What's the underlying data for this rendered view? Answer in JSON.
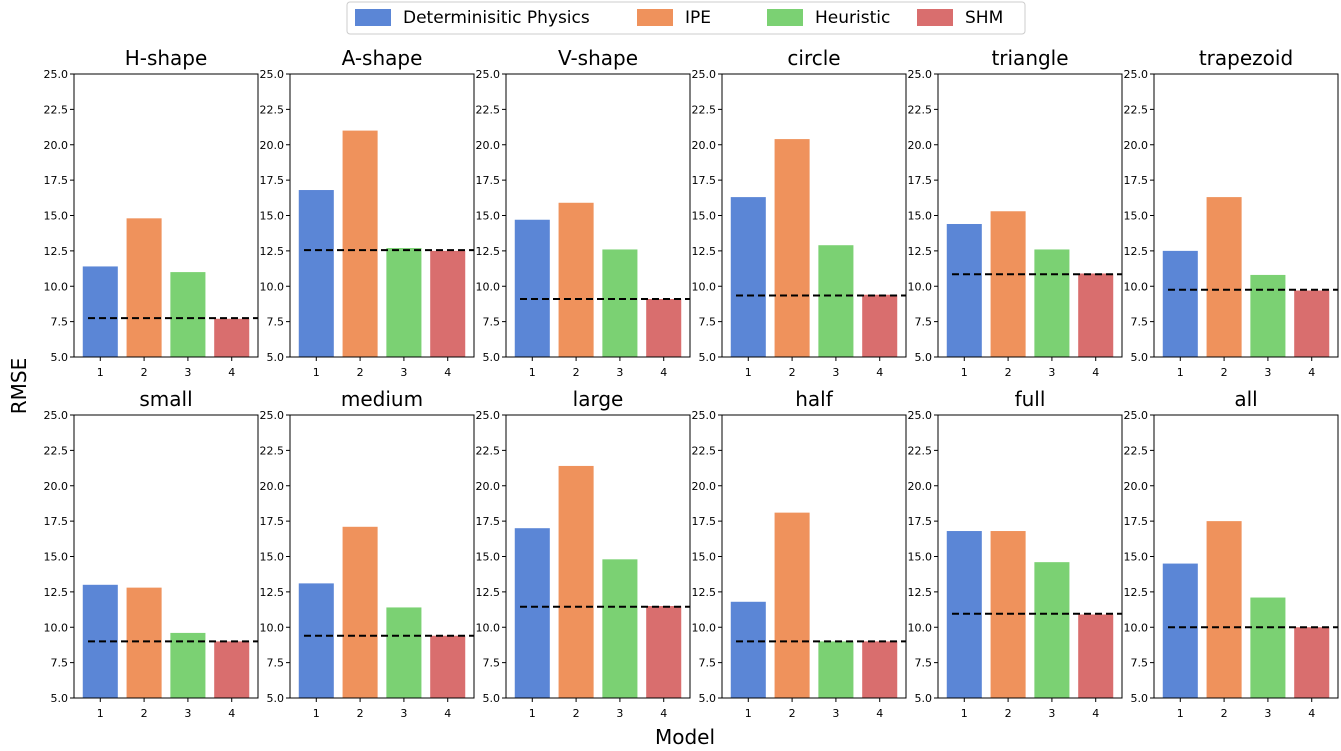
{
  "figure": {
    "xlabel": "Model",
    "ylabel": "RMSE"
  },
  "legend": {
    "entries": [
      {
        "name": "Determinisitic Physics",
        "color": "#5b86d6"
      },
      {
        "name": "IPE",
        "color": "#ef925c"
      },
      {
        "name": "Heuristic",
        "color": "#7bd173"
      },
      {
        "name": "SHM",
        "color": "#d96e6e"
      }
    ]
  },
  "chart_data": [
    {
      "type": "bar",
      "title": "H-shape",
      "categories": [
        "1",
        "2",
        "3",
        "4"
      ],
      "values": [
        11.4,
        14.8,
        11.0,
        7.7
      ],
      "reference_line": 7.75,
      "ylim": [
        5,
        25
      ],
      "yticks": [
        "5.0",
        "7.5",
        "10.0",
        "12.5",
        "15.0",
        "17.5",
        "20.0",
        "22.5",
        "25.0"
      ]
    },
    {
      "type": "bar",
      "title": "A-shape",
      "categories": [
        "1",
        "2",
        "3",
        "4"
      ],
      "values": [
        16.8,
        21.0,
        12.7,
        12.5
      ],
      "reference_line": 12.55,
      "ylim": [
        5,
        25
      ],
      "yticks": [
        "5.0",
        "7.5",
        "10.0",
        "12.5",
        "15.0",
        "17.5",
        "20.0",
        "22.5",
        "25.0"
      ]
    },
    {
      "type": "bar",
      "title": "V-shape",
      "categories": [
        "1",
        "2",
        "3",
        "4"
      ],
      "values": [
        14.7,
        15.9,
        12.6,
        9.1
      ],
      "reference_line": 9.1,
      "ylim": [
        5,
        25
      ],
      "yticks": [
        "5.0",
        "7.5",
        "10.0",
        "12.5",
        "15.0",
        "17.5",
        "20.0",
        "22.5",
        "25.0"
      ]
    },
    {
      "type": "bar",
      "title": "circle",
      "categories": [
        "1",
        "2",
        "3",
        "4"
      ],
      "values": [
        16.3,
        20.4,
        12.9,
        9.4
      ],
      "reference_line": 9.35,
      "ylim": [
        5,
        25
      ],
      "yticks": [
        "5.0",
        "7.5",
        "10.0",
        "12.5",
        "15.0",
        "17.5",
        "20.0",
        "22.5",
        "25.0"
      ]
    },
    {
      "type": "bar",
      "title": "triangle",
      "categories": [
        "1",
        "2",
        "3",
        "4"
      ],
      "values": [
        14.4,
        15.3,
        12.6,
        10.9
      ],
      "reference_line": 10.85,
      "ylim": [
        5,
        25
      ],
      "yticks": [
        "5.0",
        "7.5",
        "10.0",
        "12.5",
        "15.0",
        "17.5",
        "20.0",
        "22.5",
        "25.0"
      ]
    },
    {
      "type": "bar",
      "title": "trapezoid",
      "categories": [
        "1",
        "2",
        "3",
        "4"
      ],
      "values": [
        12.5,
        16.3,
        10.8,
        9.7
      ],
      "reference_line": 9.75,
      "ylim": [
        5,
        25
      ],
      "yticks": [
        "5.0",
        "7.5",
        "10.0",
        "12.5",
        "15.0",
        "17.5",
        "20.0",
        "22.5",
        "25.0"
      ]
    },
    {
      "type": "bar",
      "title": "small",
      "categories": [
        "1",
        "2",
        "3",
        "4"
      ],
      "values": [
        13.0,
        12.8,
        9.6,
        9.0
      ],
      "reference_line": 9.0,
      "ylim": [
        5,
        25
      ],
      "yticks": [
        "5.0",
        "7.5",
        "10.0",
        "12.5",
        "15.0",
        "17.5",
        "20.0",
        "22.5",
        "25.0"
      ]
    },
    {
      "type": "bar",
      "title": "medium",
      "categories": [
        "1",
        "2",
        "3",
        "4"
      ],
      "values": [
        13.1,
        17.1,
        11.4,
        9.4
      ],
      "reference_line": 9.4,
      "ylim": [
        5,
        25
      ],
      "yticks": [
        "5.0",
        "7.5",
        "10.0",
        "12.5",
        "15.0",
        "17.5",
        "20.0",
        "22.5",
        "25.0"
      ]
    },
    {
      "type": "bar",
      "title": "large",
      "categories": [
        "1",
        "2",
        "3",
        "4"
      ],
      "values": [
        17.0,
        21.4,
        14.8,
        11.5
      ],
      "reference_line": 11.45,
      "ylim": [
        5,
        25
      ],
      "yticks": [
        "5.0",
        "7.5",
        "10.0",
        "12.5",
        "15.0",
        "17.5",
        "20.0",
        "22.5",
        "25.0"
      ]
    },
    {
      "type": "bar",
      "title": "half",
      "categories": [
        "1",
        "2",
        "3",
        "4"
      ],
      "values": [
        11.8,
        18.1,
        9.0,
        9.0
      ],
      "reference_line": 9.0,
      "ylim": [
        5,
        25
      ],
      "yticks": [
        "5.0",
        "7.5",
        "10.0",
        "12.5",
        "15.0",
        "17.5",
        "20.0",
        "22.5",
        "25.0"
      ]
    },
    {
      "type": "bar",
      "title": "full",
      "categories": [
        "1",
        "2",
        "3",
        "4"
      ],
      "values": [
        16.8,
        16.8,
        14.6,
        10.9
      ],
      "reference_line": 10.95,
      "ylim": [
        5,
        25
      ],
      "yticks": [
        "5.0",
        "7.5",
        "10.0",
        "12.5",
        "15.0",
        "17.5",
        "20.0",
        "22.5",
        "25.0"
      ]
    },
    {
      "type": "bar",
      "title": "all",
      "categories": [
        "1",
        "2",
        "3",
        "4"
      ],
      "values": [
        14.5,
        17.5,
        12.1,
        10.0
      ],
      "reference_line": 10.0,
      "ylim": [
        5,
        25
      ],
      "yticks": [
        "5.0",
        "7.5",
        "10.0",
        "12.5",
        "15.0",
        "17.5",
        "20.0",
        "22.5",
        "25.0"
      ]
    }
  ]
}
